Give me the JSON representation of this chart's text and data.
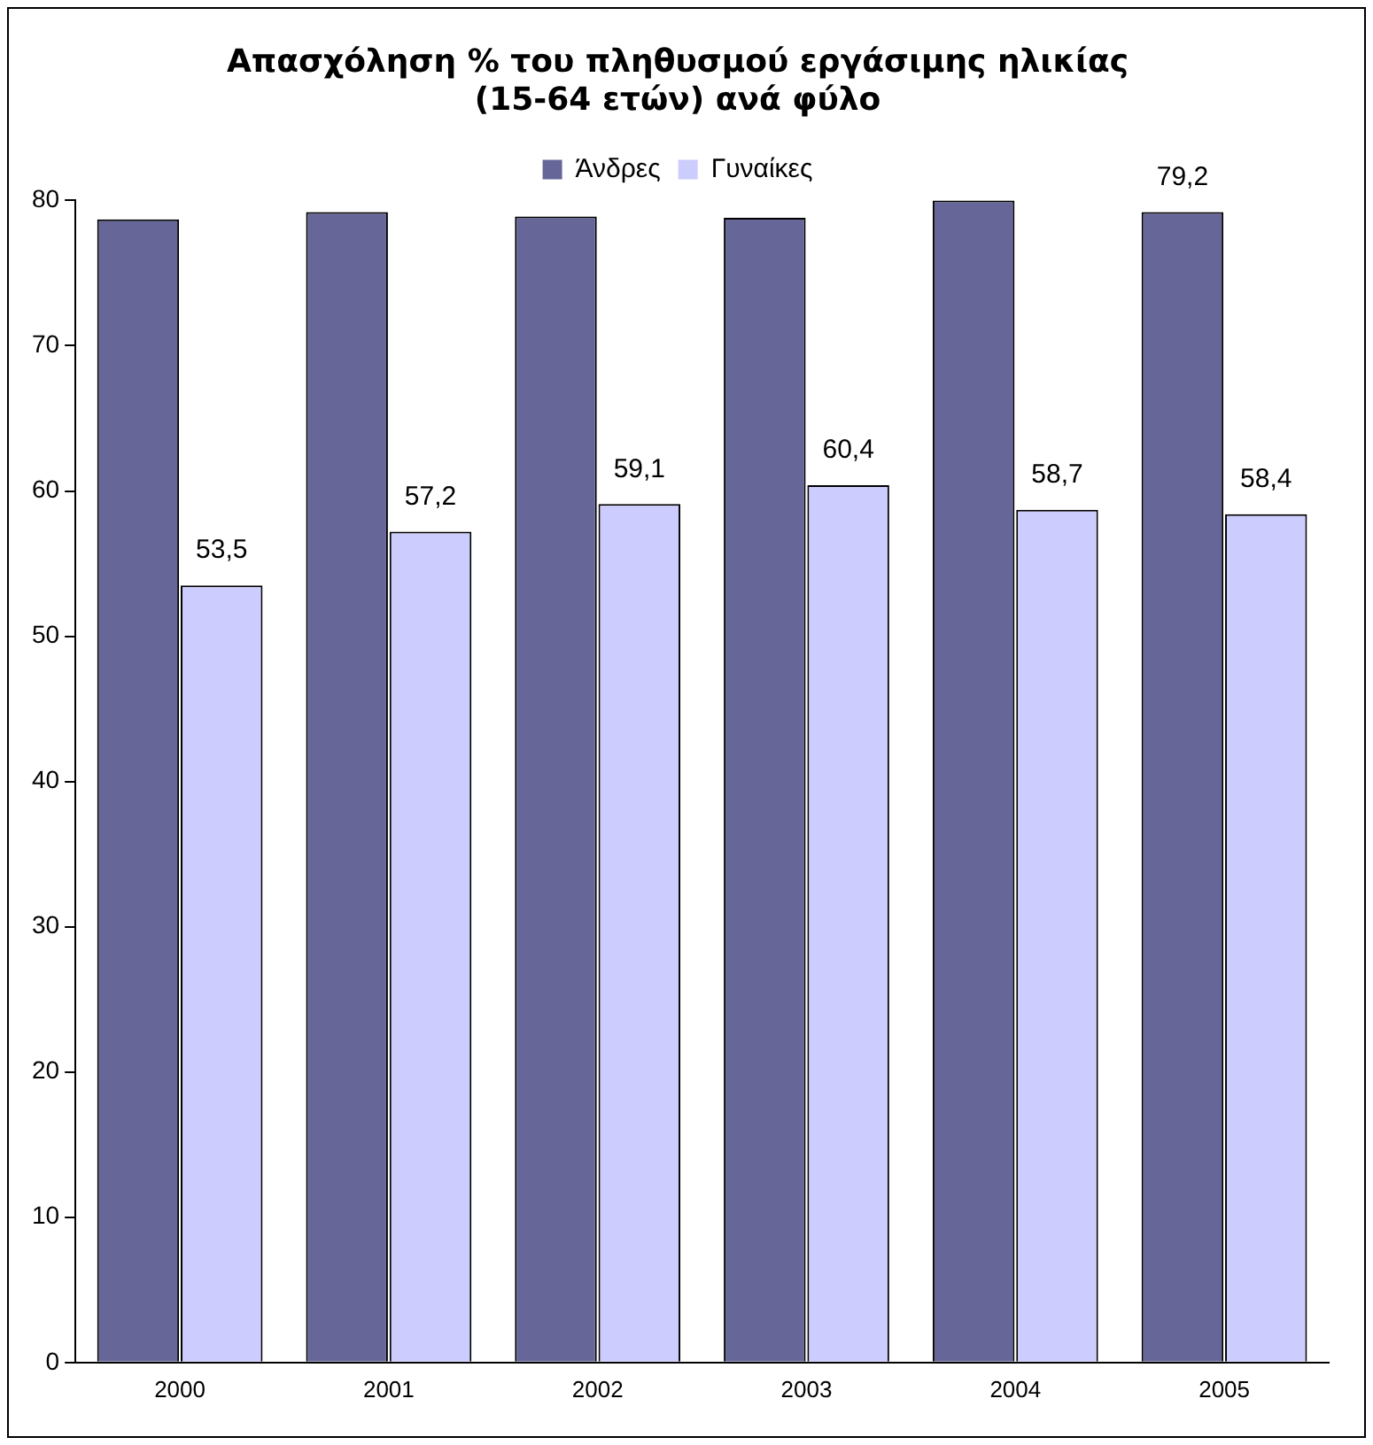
{
  "chart_data": {
    "type": "bar",
    "title": "Απασχόληση % του πληθυσμού εργάσιμης ηλικίας (15-64 ετών) ανά φύλο",
    "categories": [
      "2000",
      "2001",
      "2002",
      "2003",
      "2004",
      "2005"
    ],
    "series": [
      {
        "name": "Άνδρες",
        "color": "#666699",
        "values": [
          78.7,
          79.2,
          78.9,
          78.8,
          80,
          79.2
        ],
        "value_labels": [
          null,
          null,
          null,
          null,
          null,
          "79,2"
        ]
      },
      {
        "name": "Γυναίκες",
        "color": "#ccccff",
        "values": [
          53.5,
          57.2,
          59.1,
          60.4,
          58.7,
          58.4
        ],
        "value_labels": [
          "53,5",
          "57,2",
          "59,1",
          "60,4",
          "58,7",
          "58,4"
        ]
      }
    ],
    "ylim": [
      0,
      80
    ],
    "yticks": [
      0,
      10,
      20,
      30,
      40,
      50,
      60,
      70,
      80
    ],
    "grid": false,
    "legend": "top"
  }
}
